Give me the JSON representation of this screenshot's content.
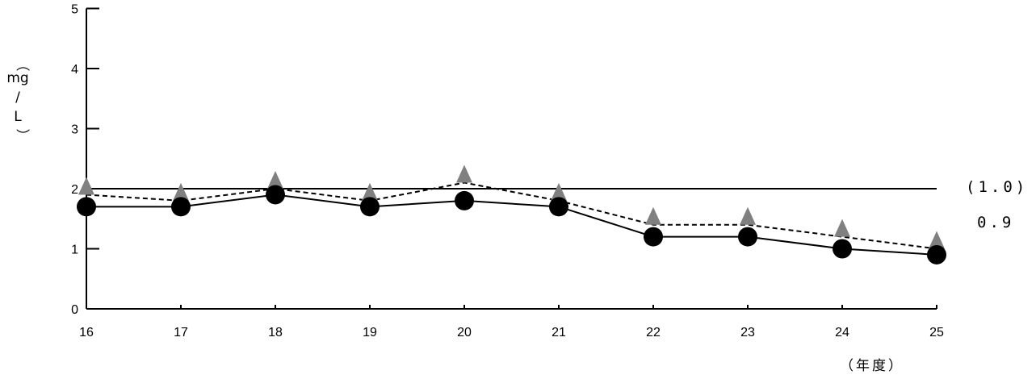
{
  "chart_data": {
    "type": "line",
    "title": "",
    "xlabel": "（年度）",
    "ylabel": "（mg/L）",
    "ylim": [
      0,
      5
    ],
    "y_ticks": [
      "0",
      "1",
      "2",
      "3",
      "4",
      "5"
    ],
    "categories": [
      "16",
      "17",
      "18",
      "19",
      "20",
      "21",
      "22",
      "23",
      "24",
      "25"
    ],
    "series": [
      {
        "name": "",
        "marker": "triangle",
        "line": "dashed",
        "color": "#808080",
        "values": [
          1.9,
          1.8,
          2.0,
          1.8,
          2.1,
          1.8,
          1.4,
          1.4,
          1.2,
          1.0
        ]
      },
      {
        "name": "",
        "marker": "circle",
        "line": "solid",
        "color": "#000000",
        "values": [
          1.7,
          1.7,
          1.9,
          1.7,
          1.8,
          1.7,
          1.2,
          1.2,
          1.0,
          0.9
        ]
      }
    ],
    "reference_line": {
      "value": 2
    },
    "annotations": [
      "(1.0)",
      "0.9"
    ],
    "grid": false,
    "legend": "none"
  }
}
